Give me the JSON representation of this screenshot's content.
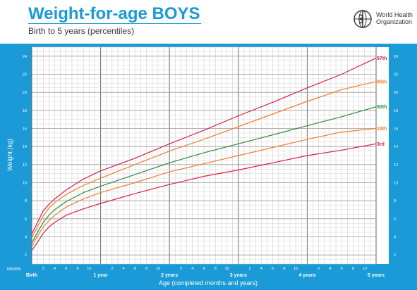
{
  "header": {
    "title": "Weight-for-age BOYS",
    "subtitle": "Birth to 5 years (percentiles)",
    "org_line1": "World Health",
    "org_line2": "Organization"
  },
  "colors": {
    "title": "#1a9ad6",
    "frame": "#1a9ad6",
    "p97": "#d81e4a",
    "p85": "#ef7d2c",
    "p50": "#2a8a3c",
    "p15": "#ef7d2c",
    "p3": "#d81e4a"
  },
  "chart_data": {
    "type": "line",
    "xlabel": "Age (completed months and years)",
    "ylabel": "Weight (kg)",
    "months_label": "Months",
    "xlim": [
      0,
      60
    ],
    "ylim": [
      1,
      25
    ],
    "y_ticks": [
      2,
      4,
      6,
      8,
      10,
      12,
      14,
      16,
      18,
      20,
      22,
      24
    ],
    "x_month_ticks": [
      2,
      4,
      6,
      8,
      10
    ],
    "x_year_labels": [
      "Birth",
      "1 year",
      "2 years",
      "3 years",
      "4 years",
      "5 years"
    ],
    "grid": true,
    "x": [
      0,
      1,
      2,
      3,
      4,
      6,
      9,
      12,
      18,
      24,
      30,
      36,
      42,
      48,
      54,
      60
    ],
    "series": [
      {
        "name": "97th",
        "values": [
          4.3,
          5.6,
          6.9,
          7.6,
          8.2,
          9.2,
          10.4,
          11.3,
          12.7,
          14.3,
          15.8,
          17.4,
          18.9,
          20.5,
          22.0,
          23.8
        ]
      },
      {
        "name": "85th",
        "values": [
          3.9,
          5.1,
          6.3,
          7.2,
          7.8,
          8.7,
          9.7,
          10.5,
          12.0,
          13.5,
          14.8,
          16.2,
          17.6,
          19.0,
          20.3,
          21.2
        ]
      },
      {
        "name": "50th",
        "values": [
          3.3,
          4.5,
          5.6,
          6.4,
          7.0,
          7.9,
          8.9,
          9.6,
          10.9,
          12.2,
          13.3,
          14.3,
          15.3,
          16.3,
          17.3,
          18.4
        ]
      },
      {
        "name": "15th",
        "values": [
          2.9,
          4.1,
          5.1,
          5.8,
          6.4,
          7.3,
          8.2,
          8.9,
          10.0,
          11.2,
          12.1,
          13.0,
          13.9,
          14.8,
          15.6,
          16.0
        ]
      },
      {
        "name": "3rd",
        "values": [
          2.5,
          3.4,
          4.4,
          5.1,
          5.6,
          6.4,
          7.1,
          7.7,
          8.8,
          9.8,
          10.7,
          11.4,
          12.2,
          13.0,
          13.6,
          14.3
        ]
      }
    ]
  }
}
